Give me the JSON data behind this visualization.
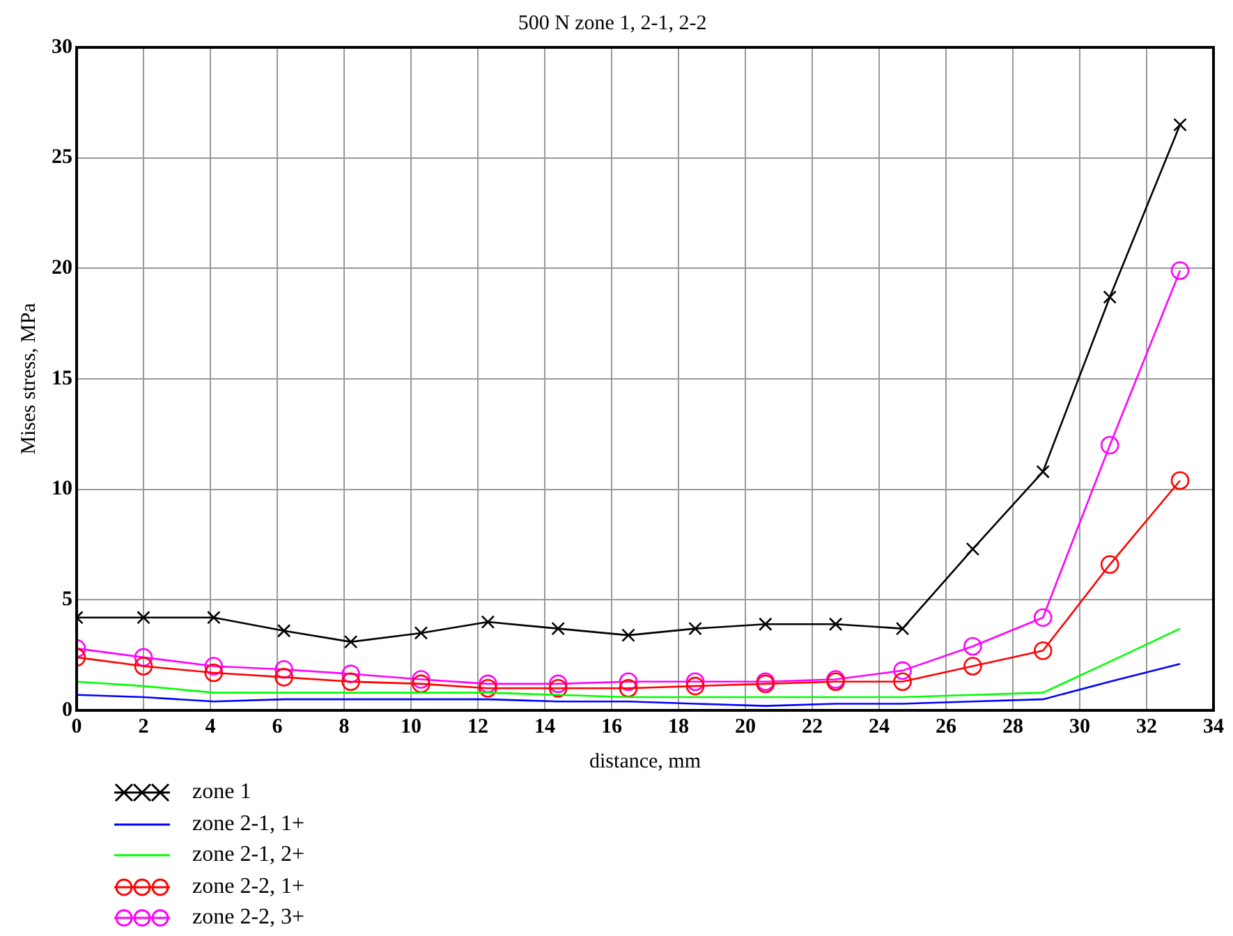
{
  "chart_data": {
    "type": "line",
    "title": "500 N zone 1, 2-1, 2-2",
    "xlabel": "distance, mm",
    "ylabel": "Mises stress, MPa",
    "x": [
      0,
      2,
      4.1,
      6.2,
      8.2,
      10.3,
      12.3,
      14.4,
      16.5,
      18.5,
      20.6,
      22.7,
      24.7,
      26.8,
      28.9,
      30.9,
      33
    ],
    "xlim": [
      0,
      34
    ],
    "xticks": [
      0,
      2,
      4,
      6,
      8,
      10,
      12,
      14,
      16,
      18,
      20,
      22,
      24,
      26,
      28,
      30,
      32,
      34
    ],
    "ylim": [
      0,
      30
    ],
    "yticks": [
      0,
      5,
      10,
      15,
      20,
      25,
      30
    ],
    "grid": true,
    "legend": "bottom left",
    "line_style": "solid",
    "series": [
      {
        "name": "zone 1",
        "color": "#000000",
        "marker": "cross",
        "values": [
          4.2,
          4.2,
          4.2,
          3.6,
          3.1,
          3.5,
          4.0,
          3.7,
          3.4,
          3.7,
          3.9,
          3.9,
          3.7,
          7.3,
          10.8,
          18.7,
          26.5
        ]
      },
      {
        "name": "zone 2-1, 1+",
        "color": "#0000ff",
        "marker": "none",
        "values": [
          0.7,
          0.6,
          0.4,
          0.5,
          0.5,
          0.5,
          0.5,
          0.4,
          0.4,
          0.3,
          0.2,
          0.3,
          0.3,
          0.4,
          0.5,
          1.3,
          2.1
        ]
      },
      {
        "name": "zone 2-1, 2+",
        "color": "#00ff00",
        "marker": "none",
        "values": [
          1.3,
          1.1,
          0.8,
          0.8,
          0.8,
          0.8,
          0.8,
          0.7,
          0.6,
          0.6,
          0.6,
          0.6,
          0.6,
          0.7,
          0.8,
          2.2,
          3.7
        ]
      },
      {
        "name": "zone 2-2, 1+",
        "color": "#ff0000",
        "marker": "circle",
        "values": [
          2.4,
          2.0,
          1.7,
          1.5,
          1.3,
          1.2,
          1.0,
          1.0,
          1.0,
          1.1,
          1.2,
          1.3,
          1.3,
          2.0,
          2.7,
          6.6,
          10.4
        ]
      },
      {
        "name": "zone 2-2, 3+",
        "color": "#ff00ff",
        "marker": "circle",
        "values": [
          2.8,
          2.4,
          2.0,
          1.85,
          1.65,
          1.4,
          1.2,
          1.2,
          1.3,
          1.3,
          1.3,
          1.4,
          1.8,
          2.9,
          4.2,
          12.0,
          19.9
        ]
      }
    ]
  }
}
